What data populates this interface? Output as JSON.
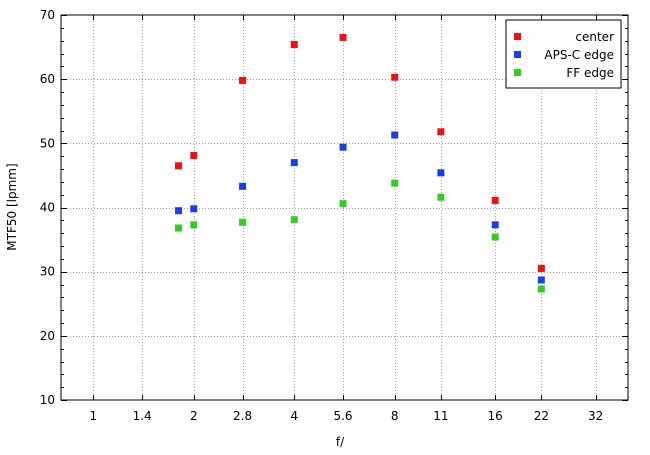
{
  "chart_data": {
    "type": "scatter",
    "xlabel": "f/",
    "ylabel": "MTF50 [lpmm]",
    "x_scale": "log2",
    "x_ticks": [
      1,
      1.4,
      2,
      2.8,
      4,
      5.6,
      8,
      11,
      16,
      22,
      32
    ],
    "x_tick_labels": [
      "1",
      "1.4",
      "2",
      "2.8",
      "4",
      "5.6",
      "8",
      "11",
      "16",
      "22",
      "32"
    ],
    "xlim": [
      0.8,
      40
    ],
    "ylim": [
      10,
      70
    ],
    "y_ticks": [
      10,
      20,
      30,
      40,
      50,
      60,
      70
    ],
    "y_tick_labels": [
      "10",
      "20",
      "30",
      "40",
      "50",
      "60",
      "70"
    ],
    "grid": true,
    "legend_position": "top-right",
    "series": [
      {
        "name": "center",
        "color": "#ee1111",
        "x": [
          1.8,
          2,
          2.8,
          4,
          5.6,
          8,
          11,
          16,
          22
        ],
        "y": [
          46.5,
          48.1,
          59.8,
          65.4,
          66.5,
          60.3,
          51.8,
          41.1,
          30.5
        ]
      },
      {
        "name": "APS-C edge",
        "color": "#1a3fe0",
        "x": [
          1.8,
          2,
          2.8,
          4,
          5.6,
          8,
          11,
          16,
          22
        ],
        "y": [
          39.5,
          39.8,
          43.3,
          47.0,
          49.4,
          51.3,
          45.4,
          37.3,
          28.7
        ]
      },
      {
        "name": "FF edge",
        "color": "#33cc22",
        "x": [
          1.8,
          2,
          2.8,
          4,
          5.6,
          8,
          11,
          16,
          22
        ],
        "y": [
          36.8,
          37.3,
          37.7,
          38.1,
          40.6,
          43.8,
          41.6,
          35.4,
          27.3
        ]
      }
    ]
  }
}
